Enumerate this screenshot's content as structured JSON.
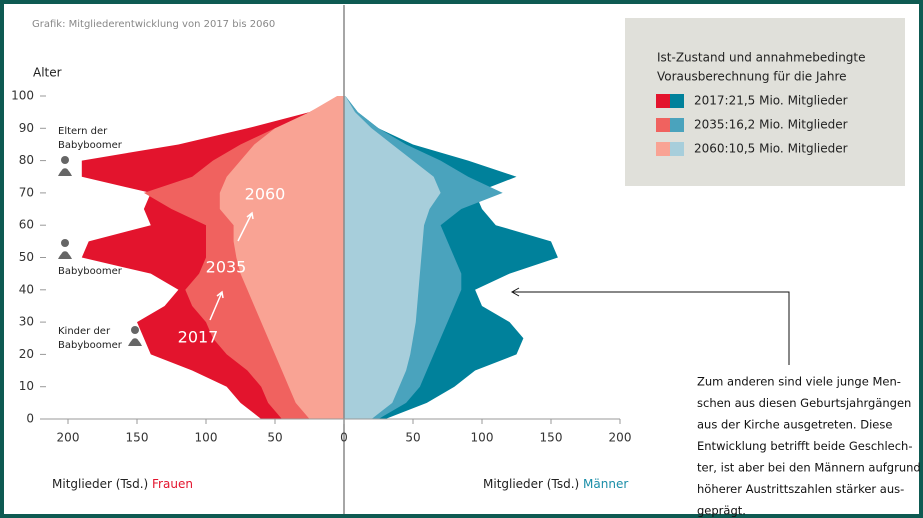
{
  "chart_data": {
    "type": "pyramid",
    "title": "Grafik: Mitgliederentwicklung von 2017 bis 2060",
    "y_label": "Alter",
    "x_label": "Mitglieder (Tsd.)",
    "left_label": "Frauen",
    "right_label": "Männer",
    "xlim": [
      0,
      200
    ],
    "xticks": [
      0,
      50,
      100,
      150,
      200
    ],
    "ylim": [
      0,
      100
    ],
    "yticks": [
      0,
      10,
      20,
      30,
      40,
      50,
      60,
      70,
      80,
      90,
      100
    ],
    "ages": [
      0,
      5,
      10,
      15,
      20,
      25,
      30,
      35,
      40,
      45,
      50,
      55,
      60,
      65,
      70,
      75,
      80,
      85,
      90,
      95,
      100
    ],
    "legend_title": [
      "Ist-Zustand und annahmebedingte",
      "Vorausberechnung für die Jahre"
    ],
    "series": [
      {
        "name": "2017:21,5 Mio. Mitglieder",
        "label": "2017",
        "female_color": "#e3142d",
        "male_color": "#00819b",
        "female": [
          60,
          75,
          85,
          110,
          140,
          145,
          150,
          130,
          120,
          140,
          190,
          185,
          140,
          145,
          140,
          190,
          190,
          120,
          70,
          25,
          3
        ],
        "male": [
          30,
          60,
          80,
          95,
          125,
          130,
          120,
          100,
          95,
          120,
          155,
          150,
          110,
          100,
          95,
          125,
          90,
          50,
          25,
          10,
          1
        ]
      },
      {
        "name": "2035:16,2 Mio. Mitglieder",
        "label": "2035",
        "female_color": "#f0625f",
        "male_color": "#4aa3bd",
        "female": [
          45,
          55,
          60,
          70,
          85,
          95,
          100,
          110,
          115,
          105,
          100,
          100,
          100,
          125,
          145,
          110,
          95,
          75,
          50,
          20,
          2
        ],
        "male": [
          25,
          45,
          55,
          60,
          65,
          70,
          75,
          80,
          85,
          85,
          80,
          75,
          70,
          85,
          115,
          90,
          70,
          45,
          25,
          10,
          1
        ]
      },
      {
        "name": "2060:10,5 Mio. Mitglieder",
        "label": "2060",
        "female_color": "#f9a394",
        "male_color": "#a7cedb",
        "female": [
          25,
          35,
          40,
          45,
          50,
          55,
          60,
          65,
          70,
          75,
          78,
          80,
          80,
          90,
          90,
          85,
          75,
          65,
          50,
          25,
          5
        ],
        "male": [
          20,
          35,
          40,
          45,
          48,
          50,
          52,
          53,
          54,
          55,
          56,
          57,
          58,
          62,
          70,
          65,
          50,
          35,
          20,
          8,
          1
        ]
      }
    ],
    "annotations": {
      "parents": [
        "Eltern der",
        "Babyboomer"
      ],
      "boomers": "Babyboomer",
      "children": [
        "Kinder der",
        "Babyboomer"
      ]
    },
    "note": [
      "Zum anderen sind viele junge Men-",
      "schen aus diesen Geburtsjahrgängen",
      "aus der Kirche ausgetreten. Diese",
      "Entwicklung betrifft beide Geschlech-",
      "ter, ist aber bei den Männern aufgrund",
      "höherer Austrittszahlen stärker aus-",
      "geprägt."
    ]
  }
}
